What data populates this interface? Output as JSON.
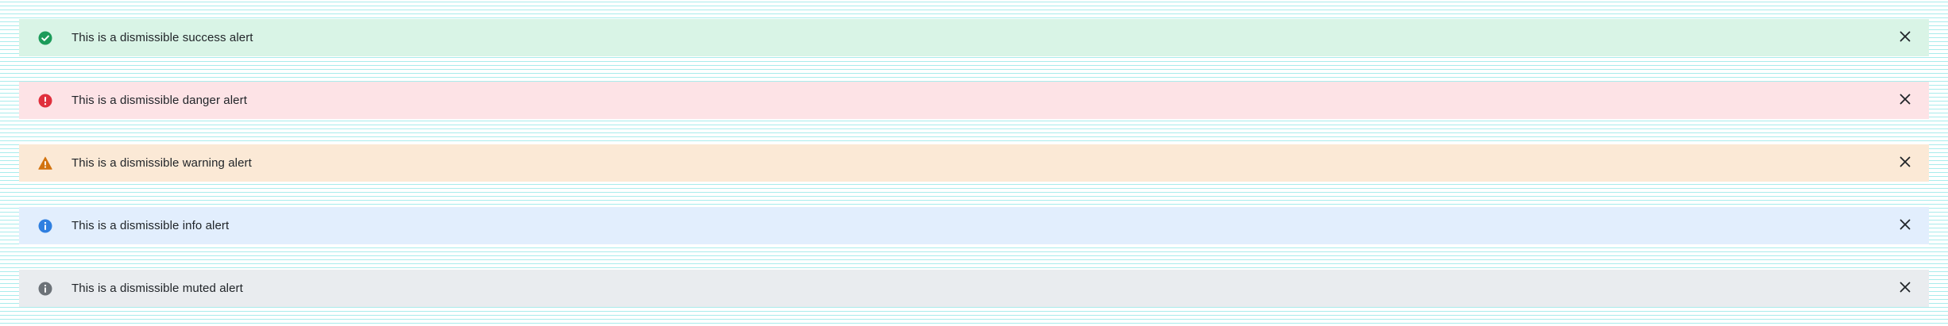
{
  "alerts": [
    {
      "variant": "success",
      "icon": "check-circle-icon",
      "icon_color": "#1c9b5a",
      "background": "#d9f4e6",
      "message": "This is a dismissible success alert",
      "close_icon": "close-icon"
    },
    {
      "variant": "danger",
      "icon": "exclamation-circle-icon",
      "icon_color": "#e0303d",
      "background": "#fde3e6",
      "message": "This is a dismissible danger alert",
      "close_icon": "close-icon"
    },
    {
      "variant": "warning",
      "icon": "warning-triangle-icon",
      "icon_color": "#d2730f",
      "background": "#fbe9d6",
      "message": "This is a dismissible warning alert",
      "close_icon": "close-icon"
    },
    {
      "variant": "info",
      "icon": "info-circle-icon",
      "icon_color": "#2f7fe0",
      "background": "#e2eefd",
      "message": "This is a dismissible info alert",
      "close_icon": "close-icon"
    },
    {
      "variant": "muted",
      "icon": "info-circle-icon",
      "icon_color": "#6c7278",
      "background": "#e9ecef",
      "message": "This is a dismissible muted alert",
      "close_icon": "close-icon"
    }
  ]
}
